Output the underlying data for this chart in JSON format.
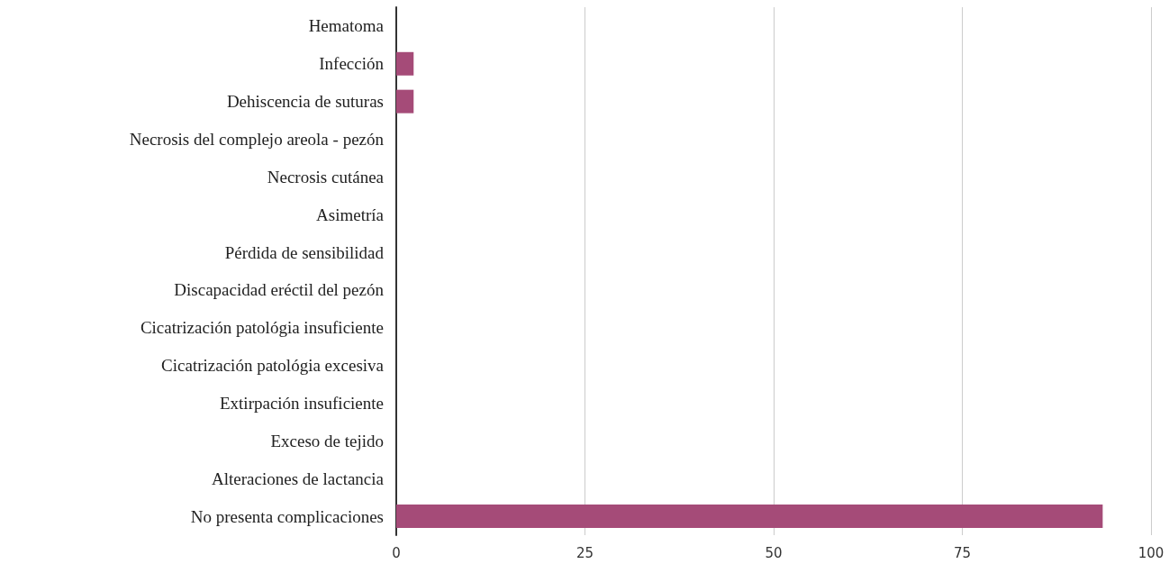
{
  "chart_data": {
    "type": "bar",
    "orientation": "horizontal",
    "categories": [
      "Hematoma",
      "Infección",
      "Dehiscencia de suturas",
      "Necrosis del complejo areola - pezón",
      "Necrosis cutánea",
      "Asimetría",
      "Pérdida de sensibilidad",
      "Discapacidad eréctil del pezón",
      "Cicatrización patológia insuficiente",
      "Cicatrización patológia excesiva",
      "Extirpación insuficiente",
      "Exceso de tejido",
      "Alteraciones de lactancia",
      "No presenta complicaciones"
    ],
    "values": [
      0,
      2.3,
      2.3,
      0,
      0,
      0,
      0,
      0,
      0,
      0,
      0,
      0,
      0,
      93.6
    ],
    "color": "#a54b78",
    "xlim": [
      0,
      100
    ],
    "xticks": [
      0,
      25,
      50,
      75,
      100
    ],
    "grid": "x"
  }
}
